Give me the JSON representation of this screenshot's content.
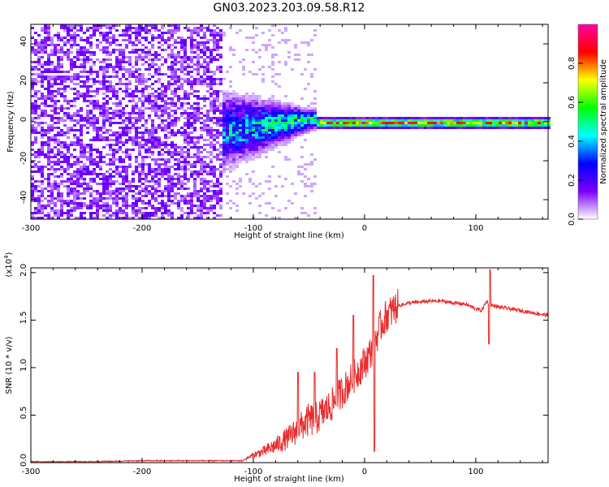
{
  "title": "GN03.2023.203.09.58.R12",
  "chart_data": [
    {
      "type": "heatmap",
      "xlabel": "Height of straight line (km)",
      "ylabel": "Frequency (Hz)",
      "xlim": [
        -300,
        165
      ],
      "ylim": [
        -50,
        50
      ],
      "x_ticks": [
        -300,
        -200,
        -100,
        0,
        100
      ],
      "y_ticks": [
        -40,
        -20,
        0,
        20,
        40
      ],
      "colorbar": {
        "label": "Normalized spectral amplitude",
        "range": [
          0,
          1
        ],
        "ticks": [
          "0.0",
          "0.2",
          "0.4",
          "0.6",
          "0.8"
        ],
        "colormap": "rainbow",
        "colors": [
          "#ffffff",
          "#7a00ff",
          "#0000ff",
          "#00ffff",
          "#00ff00",
          "#ffff00",
          "#ff0000",
          "#ff00a0"
        ]
      },
      "regions": [
        {
          "x": [
            -300,
            -128
          ],
          "description": "uniform noise across all frequencies",
          "amplitude": 0.1
        },
        {
          "x": [
            -128,
            -45
          ],
          "center_hz": 0,
          "spread_hz": [
            14,
            3
          ],
          "amplitude": 0.3
        },
        {
          "x": [
            -45,
            165
          ],
          "center_hz": 0,
          "spread_hz": 2,
          "amplitude": 0.85
        }
      ]
    },
    {
      "type": "line",
      "xlabel": "Height of straight line (km)",
      "ylabel": "SNR (10 * v/v)",
      "multiplier": "(x10^4)",
      "xlim": [
        -300,
        165
      ],
      "ylim": [
        0,
        2.05
      ],
      "x_ticks": [
        -300,
        -200,
        -100,
        0,
        100
      ],
      "y_ticks": [
        "0.0",
        "0.5",
        "1.0",
        "1.5",
        "2.0"
      ],
      "color": "#e82c2c",
      "series": [
        {
          "x": [
            -300,
            -250,
            -200,
            -150,
            -110,
            -100,
            -90,
            -80,
            -70,
            -60,
            -50,
            -45,
            -40,
            -30,
            -20,
            -10,
            0,
            5,
            10,
            15,
            20,
            30,
            40,
            50,
            60,
            70,
            80,
            90,
            100,
            105,
            110,
            113,
            120,
            130,
            140,
            150,
            165
          ],
          "y": [
            0.01,
            0.01,
            0.02,
            0.02,
            0.02,
            0.08,
            0.12,
            0.18,
            0.25,
            0.35,
            0.45,
            0.45,
            0.5,
            0.6,
            0.75,
            0.9,
            1.05,
            1.15,
            1.3,
            1.45,
            1.55,
            1.65,
            1.68,
            1.69,
            1.7,
            1.7,
            1.68,
            1.67,
            1.62,
            1.6,
            1.7,
            1.66,
            1.64,
            1.62,
            1.6,
            1.58,
            1.55
          ]
        }
      ],
      "spikes": [
        {
          "x": -60,
          "y": 0.95
        },
        {
          "x": -45,
          "y": 0.95
        },
        {
          "x": -25,
          "y": 1.2
        },
        {
          "x": -10,
          "y": 1.55
        },
        {
          "x": 8,
          "y": 1.97
        },
        {
          "x": 9,
          "y": 0.12
        },
        {
          "x": 113,
          "y": 2.03
        },
        {
          "x": 112,
          "y": 1.25
        }
      ]
    }
  ]
}
